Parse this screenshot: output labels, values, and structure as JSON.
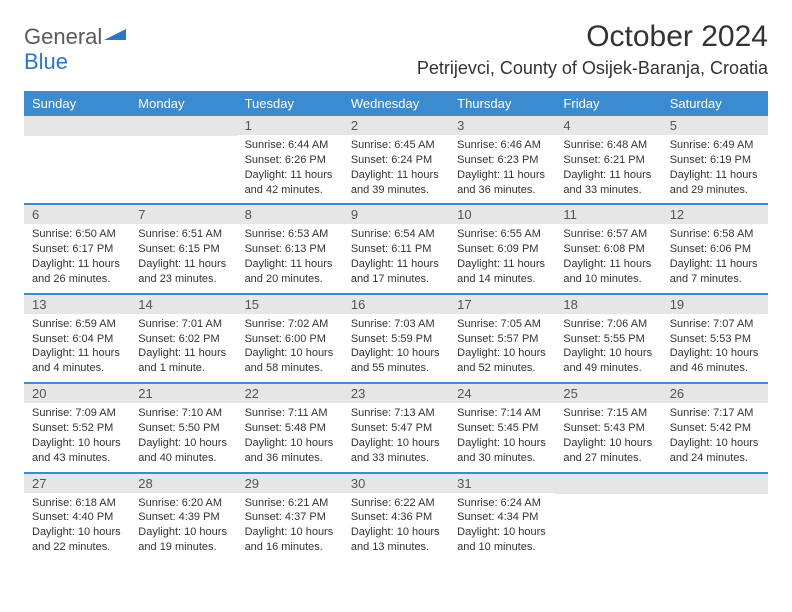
{
  "logo": {
    "word1": "General",
    "word2": "Blue"
  },
  "title": "October 2024",
  "location": "Petrijevci, County of Osijek-Baranja, Croatia",
  "colors": {
    "header_bg": "#3b8bd0",
    "header_text": "#ffffff",
    "daynum_bg": "#e6e6e6",
    "daynum_text": "#555555",
    "body_text": "#333333",
    "divider": "#3b8bd0",
    "logo_gray": "#5a5a5a",
    "logo_blue": "#2a78c4",
    "page_bg": "#ffffff"
  },
  "day_names": [
    "Sunday",
    "Monday",
    "Tuesday",
    "Wednesday",
    "Thursday",
    "Friday",
    "Saturday"
  ],
  "weeks": [
    [
      null,
      null,
      {
        "n": "1",
        "sr": "Sunrise: 6:44 AM",
        "ss": "Sunset: 6:26 PM",
        "dl": "Daylight: 11 hours and 42 minutes."
      },
      {
        "n": "2",
        "sr": "Sunrise: 6:45 AM",
        "ss": "Sunset: 6:24 PM",
        "dl": "Daylight: 11 hours and 39 minutes."
      },
      {
        "n": "3",
        "sr": "Sunrise: 6:46 AM",
        "ss": "Sunset: 6:23 PM",
        "dl": "Daylight: 11 hours and 36 minutes."
      },
      {
        "n": "4",
        "sr": "Sunrise: 6:48 AM",
        "ss": "Sunset: 6:21 PM",
        "dl": "Daylight: 11 hours and 33 minutes."
      },
      {
        "n": "5",
        "sr": "Sunrise: 6:49 AM",
        "ss": "Sunset: 6:19 PM",
        "dl": "Daylight: 11 hours and 29 minutes."
      }
    ],
    [
      {
        "n": "6",
        "sr": "Sunrise: 6:50 AM",
        "ss": "Sunset: 6:17 PM",
        "dl": "Daylight: 11 hours and 26 minutes."
      },
      {
        "n": "7",
        "sr": "Sunrise: 6:51 AM",
        "ss": "Sunset: 6:15 PM",
        "dl": "Daylight: 11 hours and 23 minutes."
      },
      {
        "n": "8",
        "sr": "Sunrise: 6:53 AM",
        "ss": "Sunset: 6:13 PM",
        "dl": "Daylight: 11 hours and 20 minutes."
      },
      {
        "n": "9",
        "sr": "Sunrise: 6:54 AM",
        "ss": "Sunset: 6:11 PM",
        "dl": "Daylight: 11 hours and 17 minutes."
      },
      {
        "n": "10",
        "sr": "Sunrise: 6:55 AM",
        "ss": "Sunset: 6:09 PM",
        "dl": "Daylight: 11 hours and 14 minutes."
      },
      {
        "n": "11",
        "sr": "Sunrise: 6:57 AM",
        "ss": "Sunset: 6:08 PM",
        "dl": "Daylight: 11 hours and 10 minutes."
      },
      {
        "n": "12",
        "sr": "Sunrise: 6:58 AM",
        "ss": "Sunset: 6:06 PM",
        "dl": "Daylight: 11 hours and 7 minutes."
      }
    ],
    [
      {
        "n": "13",
        "sr": "Sunrise: 6:59 AM",
        "ss": "Sunset: 6:04 PM",
        "dl": "Daylight: 11 hours and 4 minutes."
      },
      {
        "n": "14",
        "sr": "Sunrise: 7:01 AM",
        "ss": "Sunset: 6:02 PM",
        "dl": "Daylight: 11 hours and 1 minute."
      },
      {
        "n": "15",
        "sr": "Sunrise: 7:02 AM",
        "ss": "Sunset: 6:00 PM",
        "dl": "Daylight: 10 hours and 58 minutes."
      },
      {
        "n": "16",
        "sr": "Sunrise: 7:03 AM",
        "ss": "Sunset: 5:59 PM",
        "dl": "Daylight: 10 hours and 55 minutes."
      },
      {
        "n": "17",
        "sr": "Sunrise: 7:05 AM",
        "ss": "Sunset: 5:57 PM",
        "dl": "Daylight: 10 hours and 52 minutes."
      },
      {
        "n": "18",
        "sr": "Sunrise: 7:06 AM",
        "ss": "Sunset: 5:55 PM",
        "dl": "Daylight: 10 hours and 49 minutes."
      },
      {
        "n": "19",
        "sr": "Sunrise: 7:07 AM",
        "ss": "Sunset: 5:53 PM",
        "dl": "Daylight: 10 hours and 46 minutes."
      }
    ],
    [
      {
        "n": "20",
        "sr": "Sunrise: 7:09 AM",
        "ss": "Sunset: 5:52 PM",
        "dl": "Daylight: 10 hours and 43 minutes."
      },
      {
        "n": "21",
        "sr": "Sunrise: 7:10 AM",
        "ss": "Sunset: 5:50 PM",
        "dl": "Daylight: 10 hours and 40 minutes."
      },
      {
        "n": "22",
        "sr": "Sunrise: 7:11 AM",
        "ss": "Sunset: 5:48 PM",
        "dl": "Daylight: 10 hours and 36 minutes."
      },
      {
        "n": "23",
        "sr": "Sunrise: 7:13 AM",
        "ss": "Sunset: 5:47 PM",
        "dl": "Daylight: 10 hours and 33 minutes."
      },
      {
        "n": "24",
        "sr": "Sunrise: 7:14 AM",
        "ss": "Sunset: 5:45 PM",
        "dl": "Daylight: 10 hours and 30 minutes."
      },
      {
        "n": "25",
        "sr": "Sunrise: 7:15 AM",
        "ss": "Sunset: 5:43 PM",
        "dl": "Daylight: 10 hours and 27 minutes."
      },
      {
        "n": "26",
        "sr": "Sunrise: 7:17 AM",
        "ss": "Sunset: 5:42 PM",
        "dl": "Daylight: 10 hours and 24 minutes."
      }
    ],
    [
      {
        "n": "27",
        "sr": "Sunrise: 6:18 AM",
        "ss": "Sunset: 4:40 PM",
        "dl": "Daylight: 10 hours and 22 minutes."
      },
      {
        "n": "28",
        "sr": "Sunrise: 6:20 AM",
        "ss": "Sunset: 4:39 PM",
        "dl": "Daylight: 10 hours and 19 minutes."
      },
      {
        "n": "29",
        "sr": "Sunrise: 6:21 AM",
        "ss": "Sunset: 4:37 PM",
        "dl": "Daylight: 10 hours and 16 minutes."
      },
      {
        "n": "30",
        "sr": "Sunrise: 6:22 AM",
        "ss": "Sunset: 4:36 PM",
        "dl": "Daylight: 10 hours and 13 minutes."
      },
      {
        "n": "31",
        "sr": "Sunrise: 6:24 AM",
        "ss": "Sunset: 4:34 PM",
        "dl": "Daylight: 10 hours and 10 minutes."
      },
      null,
      null
    ]
  ]
}
